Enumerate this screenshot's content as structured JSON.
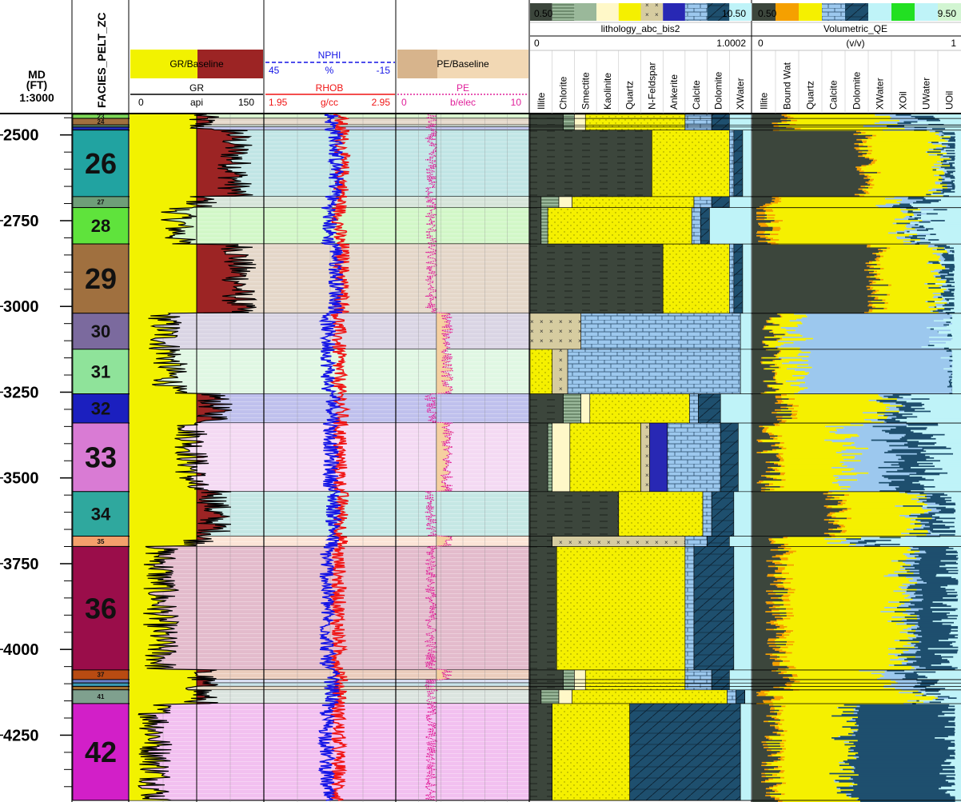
{
  "header": {
    "md_title": "MD",
    "md_unit": "(FT)",
    "md_scale": "1:3000",
    "facies_title": "FACIES_PELT_ZC"
  },
  "tracks": {
    "gr": {
      "fill_label": "GR/Baseline",
      "curve": "GR",
      "unit": "api",
      "min": "0",
      "max": "150"
    },
    "porosity": {
      "nphi": "NPHI",
      "nphi_unit": "%",
      "nphi_left": "45",
      "nphi_right": "-15",
      "rhob": "RHOB",
      "rhob_unit": "g/cc",
      "rhob_left": "1.95",
      "rhob_right": "2.95"
    },
    "pe": {
      "fill_label": "PE/Baseline",
      "curve": "PE",
      "unit": "b/elec",
      "min": "0",
      "max": "10"
    },
    "lithology": {
      "title": "lithology_abc_bis2",
      "scale_left": "0",
      "scale_right": "1.0002",
      "legend_left": "0.50",
      "legend_right": "10.50",
      "columns": [
        "Illite",
        "Chlorite",
        "Smectite",
        "Kaolinite",
        "Quartz",
        "N-Feldspar",
        "Ankerite",
        "Calcite",
        "Dolomite",
        "XWater"
      ]
    },
    "volumetric": {
      "title": "Volumetric_QE",
      "scale_left": "0",
      "scale_unit": "(v/v)",
      "scale_right": "1",
      "legend_left": "0.50",
      "legend_right": "9.50",
      "columns": [
        "Illite",
        "Bound Wat",
        "Quartz",
        "Calcite",
        "Dolomite",
        "XWater",
        "XOil",
        "UWater",
        "UOil"
      ]
    }
  },
  "depth_ticks": [
    "2500",
    "2750",
    "3000",
    "3250",
    "3500",
    "3750",
    "4000",
    "4250"
  ],
  "zones": [
    {
      "label": "23",
      "top": 2440,
      "bottom": 2452,
      "color": "#7ED957"
    },
    {
      "label": "24",
      "top": 2452,
      "bottom": 2471,
      "color": "#A0703F"
    },
    {
      "label": "",
      "top": 2471,
      "bottom": 2477,
      "color": "#6B9E7A"
    },
    {
      "label": "",
      "top": 2477,
      "bottom": 2486,
      "color": "#1E2DB8"
    },
    {
      "label": "26",
      "top": 2486,
      "bottom": 2680,
      "color": "#21A3A1"
    },
    {
      "label": "27",
      "top": 2680,
      "bottom": 2712,
      "color": "#6E9E78"
    },
    {
      "label": "28",
      "top": 2712,
      "bottom": 2818,
      "color": "#5FE33C"
    },
    {
      "label": "29",
      "top": 2818,
      "bottom": 3020,
      "color": "#A0703F"
    },
    {
      "label": "30",
      "top": 3020,
      "bottom": 3125,
      "color": "#7B6A9E"
    },
    {
      "label": "31",
      "top": 3125,
      "bottom": 3255,
      "color": "#8FE39A"
    },
    {
      "label": "32",
      "top": 3255,
      "bottom": 3340,
      "color": "#1B1FBF"
    },
    {
      "label": "33",
      "top": 3340,
      "bottom": 3540,
      "color": "#D97BD4"
    },
    {
      "label": "34",
      "top": 3540,
      "bottom": 3670,
      "color": "#2FA89E"
    },
    {
      "label": "35",
      "top": 3670,
      "bottom": 3700,
      "color": "#F4A06B"
    },
    {
      "label": "36",
      "top": 3700,
      "bottom": 4060,
      "color": "#9A0D4A"
    },
    {
      "label": "37",
      "top": 4060,
      "bottom": 4088,
      "color": "#B84B12"
    },
    {
      "label": "",
      "top": 4088,
      "bottom": 4098,
      "color": "#6A7FC8"
    },
    {
      "label": "",
      "top": 4098,
      "bottom": 4108,
      "color": "#3B9BB5"
    },
    {
      "label": "",
      "top": 4108,
      "bottom": 4118,
      "color": "#A07030"
    },
    {
      "label": "41",
      "top": 4118,
      "bottom": 4158,
      "color": "#7FA08E"
    },
    {
      "label": "42",
      "top": 4158,
      "bottom": 4440,
      "color": "#D21FC8"
    }
  ],
  "colors": {
    "gr_fill": "#F2F200",
    "shale_fill": "#9C2424",
    "nphi": "#1414E6",
    "rhob": "#F01414",
    "pe": "#E0209A",
    "pe_fill": "#F5D0A0",
    "quartz": "#F5F000",
    "illite": "#3C463C",
    "calcite": "#9CC8EE",
    "dolomite": "#1E4F6E",
    "xwater": "#BFF3F8",
    "ankerite": "#2828B4",
    "feldspar": "#D6CCA0",
    "kaolinite": "#FFF8C8",
    "chlorite": "#6E8E6E",
    "bound_water": "#F5A000"
  },
  "chart_data": {
    "type": "table",
    "title": "",
    "depth_unit": "FT",
    "depth_range": [
      2440,
      4440
    ],
    "x_scales": {
      "GR": [
        0,
        150
      ],
      "NPHI": [
        45,
        -15
      ],
      "RHOB": [
        1.95,
        2.95
      ],
      "PE": [
        0,
        10
      ],
      "lithology_abc_bis2": [
        0,
        1.0002
      ],
      "Volumetric_QE": [
        0,
        1
      ]
    },
    "zone_gr": [
      {
        "zone": "26",
        "gr": 118
      },
      {
        "zone": "28",
        "gr": 55
      },
      {
        "zone": "29",
        "gr": 122
      },
      {
        "zone": "30",
        "gr": 40
      },
      {
        "zone": "31",
        "gr": 45
      },
      {
        "zone": "32",
        "gr": 95
      },
      {
        "zone": "33",
        "gr": 70
      },
      {
        "zone": "34",
        "gr": 95
      },
      {
        "zone": "36",
        "gr": 35
      },
      {
        "zone": "42",
        "gr": 30
      }
    ],
    "lithology_intervals": [
      {
        "zone": "26",
        "illite": 0.55,
        "quartz": 0.35,
        "calcite": 0.02,
        "dolomite": 0.04,
        "xwater": 0.04
      },
      {
        "zone": "28",
        "illite": 0.05,
        "chlorite": 0.03,
        "quartz": 0.65,
        "calcite": 0.04,
        "dolomite": 0.04,
        "xwater": 0.19
      },
      {
        "zone": "29",
        "illite": 0.6,
        "quartz": 0.3,
        "calcite": 0.02,
        "dolomite": 0.04,
        "xwater": 0.04
      },
      {
        "zone": "30",
        "feldspar": 0.23,
        "calcite": 0.72,
        "xwater": 0.05
      },
      {
        "zone": "31",
        "quartz": 0.1,
        "feldspar": 0.07,
        "calcite": 0.78,
        "xwater": 0.05
      },
      {
        "zone": "36",
        "illite": 0.12,
        "quartz": 0.58,
        "calcite": 0.04,
        "dolomite": 0.18,
        "xwater": 0.08
      },
      {
        "zone": "42",
        "illite": 0.1,
        "quartz": 0.35,
        "dolomite": 0.5,
        "xwater": 0.05
      }
    ]
  }
}
